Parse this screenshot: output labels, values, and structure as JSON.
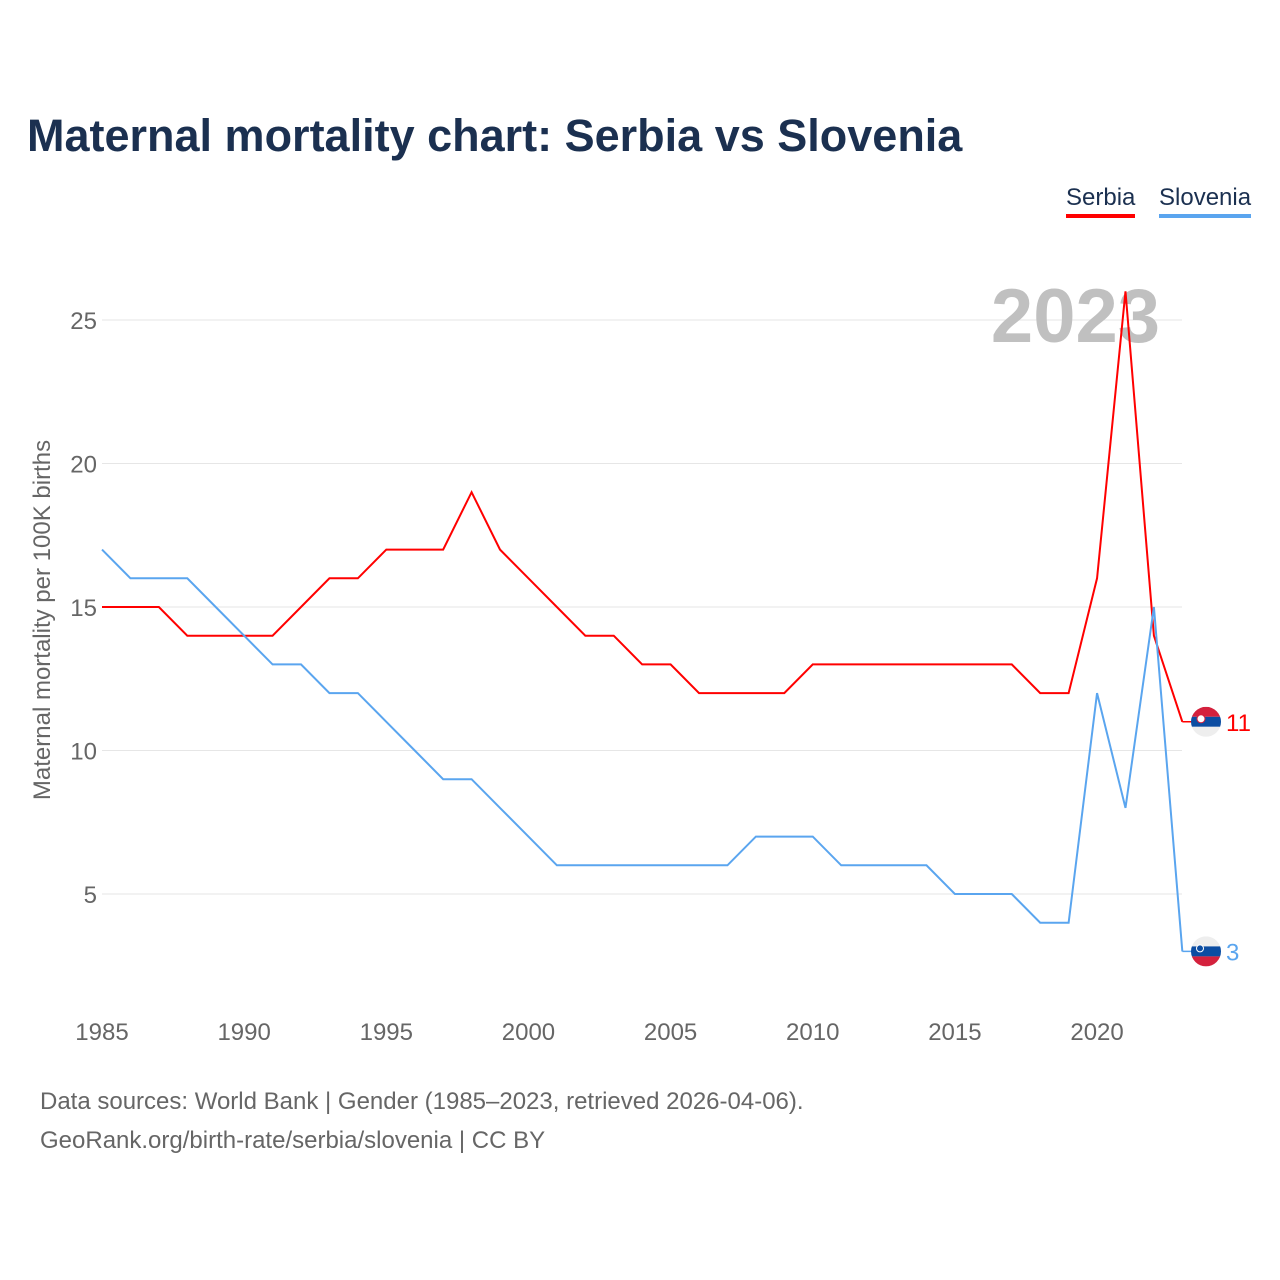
{
  "chart_data": {
    "type": "line",
    "title": "Maternal mortality chart: Serbia vs Slovenia",
    "ylabel": "Maternal mortality per 100K births",
    "xlabel": "",
    "year_watermark": "2023",
    "x": [
      1985,
      1986,
      1987,
      1988,
      1989,
      1990,
      1991,
      1992,
      1993,
      1994,
      1995,
      1996,
      1997,
      1998,
      1999,
      2000,
      2001,
      2002,
      2003,
      2004,
      2005,
      2006,
      2007,
      2008,
      2009,
      2010,
      2011,
      2012,
      2013,
      2014,
      2015,
      2016,
      2017,
      2018,
      2019,
      2020,
      2021,
      2022,
      2023
    ],
    "xlim": [
      1985,
      2023
    ],
    "ylim": [
      1.5,
      27
    ],
    "xticks": [
      "1985",
      "1990",
      "1995",
      "2000",
      "2005",
      "2010",
      "2015",
      "2020"
    ],
    "yticks": [
      "5",
      "10",
      "15",
      "20",
      "25"
    ],
    "grid": true,
    "legend_placement": "top-right",
    "series": [
      {
        "name": "Serbia",
        "color": "#ff0000",
        "end_label": "11",
        "values": [
          15,
          15,
          15,
          14,
          14,
          14,
          14,
          15,
          16,
          16,
          17,
          17,
          17,
          19,
          17,
          16,
          15,
          14,
          14,
          13,
          13,
          12,
          12,
          12,
          12,
          13,
          13,
          13,
          13,
          13,
          13,
          13,
          13,
          12,
          12,
          16,
          26,
          14,
          11
        ]
      },
      {
        "name": "Slovenia",
        "color": "#5aa5ef",
        "end_label": "3",
        "values": [
          17,
          16,
          16,
          16,
          15,
          14,
          13,
          13,
          12,
          12,
          11,
          10,
          9,
          9,
          8,
          7,
          6,
          6,
          6,
          6,
          6,
          6,
          6,
          7,
          7,
          7,
          6,
          6,
          6,
          6,
          5,
          5,
          5,
          4,
          4,
          12,
          8,
          15,
          3
        ]
      }
    ]
  },
  "footer": {
    "line1": "Data sources: World Bank | Gender (1985–2023, retrieved 2026-04-06).",
    "line2": "GeoRank.org/birth-rate/serbia/slovenia | CC BY"
  }
}
